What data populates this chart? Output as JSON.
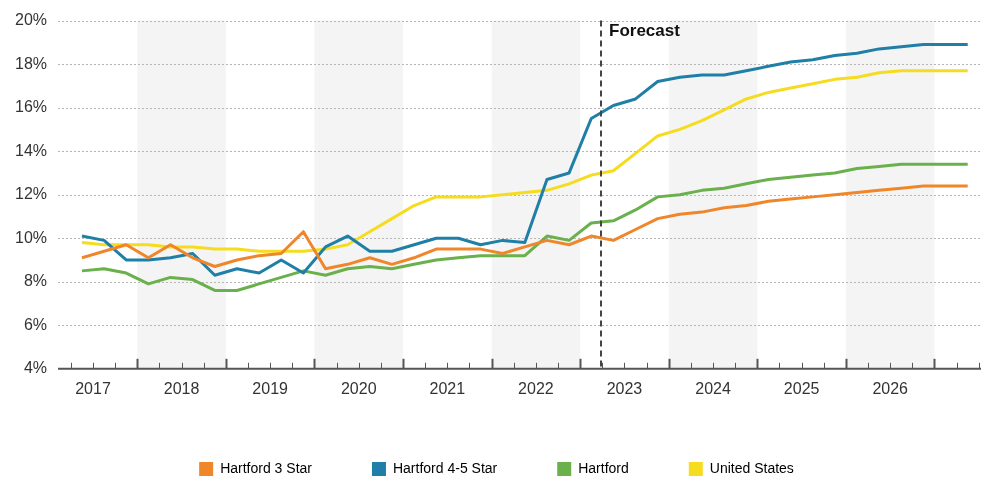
{
  "chart_data": {
    "type": "line",
    "x": [
      2017,
      2017.25,
      2017.5,
      2017.75,
      2018,
      2018.25,
      2018.5,
      2018.75,
      2019,
      2019.25,
      2019.5,
      2019.75,
      2020,
      2020.25,
      2020.5,
      2020.75,
      2021,
      2021.25,
      2021.5,
      2021.75,
      2022,
      2022.25,
      2022.5,
      2022.75,
      2023,
      2023.25,
      2023.5,
      2023.75,
      2024,
      2024.25,
      2024.5,
      2024.75,
      2025,
      2025.25,
      2025.5,
      2025.75,
      2026,
      2026.25,
      2026.5,
      2026.75,
      2027
    ],
    "series": [
      {
        "name": "Hartford 3 Star",
        "color": "#f0862a",
        "values": [
          9.1,
          9.4,
          9.7,
          9.1,
          9.7,
          9.1,
          8.7,
          9.0,
          9.2,
          9.3,
          10.3,
          8.6,
          8.8,
          9.1,
          8.8,
          9.1,
          9.5,
          9.5,
          9.5,
          9.3,
          9.6,
          9.9,
          9.7,
          10.1,
          9.9,
          10.4,
          10.9,
          11.1,
          11.2,
          11.4,
          11.5,
          11.7,
          11.8,
          11.9,
          12.0,
          12.1,
          12.2,
          12.3,
          12.4,
          12.4,
          12.4
        ]
      },
      {
        "name": "Hartford 4-5 Star",
        "color": "#1f7fa6",
        "values": [
          10.1,
          9.9,
          9.0,
          9.0,
          9.1,
          9.3,
          8.3,
          8.6,
          8.4,
          9.0,
          8.4,
          9.6,
          10.1,
          9.4,
          9.4,
          9.7,
          10.0,
          10.0,
          9.7,
          9.9,
          9.8,
          12.7,
          13.0,
          15.5,
          16.1,
          16.4,
          17.2,
          17.4,
          17.5,
          17.5,
          17.7,
          17.9,
          18.1,
          18.2,
          18.4,
          18.5,
          18.7,
          18.8,
          18.9,
          18.9,
          18.9
        ]
      },
      {
        "name": "Hartford",
        "color": "#6ab04c",
        "values": [
          8.5,
          8.6,
          8.4,
          7.9,
          8.2,
          8.1,
          7.6,
          7.6,
          7.9,
          8.2,
          8.5,
          8.3,
          8.6,
          8.7,
          8.6,
          8.8,
          9.0,
          9.1,
          9.2,
          9.2,
          9.2,
          10.1,
          9.9,
          10.7,
          10.8,
          11.3,
          11.9,
          12.0,
          12.2,
          12.3,
          12.5,
          12.7,
          12.8,
          12.9,
          13.0,
          13.2,
          13.3,
          13.4,
          13.4,
          13.4,
          13.4
        ]
      },
      {
        "name": "United States",
        "color": "#f5dc1e",
        "values": [
          9.8,
          9.7,
          9.7,
          9.7,
          9.6,
          9.6,
          9.5,
          9.5,
          9.4,
          9.4,
          9.4,
          9.5,
          9.7,
          10.3,
          10.9,
          11.5,
          11.9,
          11.9,
          11.9,
          12.0,
          12.1,
          12.2,
          12.5,
          12.9,
          13.1,
          13.9,
          14.7,
          15.0,
          15.4,
          15.9,
          16.4,
          16.7,
          16.9,
          17.1,
          17.3,
          17.4,
          17.6,
          17.7,
          17.7,
          17.7,
          17.7
        ]
      }
    ],
    "xlim": [
      2016.73,
      2027.15
    ],
    "xticks": [
      {
        "value": 2017.125,
        "label": "2017"
      },
      {
        "value": 2018.125,
        "label": "2018"
      },
      {
        "value": 2019.125,
        "label": "2019"
      },
      {
        "value": 2020.125,
        "label": "2020"
      },
      {
        "value": 2021.125,
        "label": "2021"
      },
      {
        "value": 2022.125,
        "label": "2022"
      },
      {
        "value": 2023.125,
        "label": "2023"
      },
      {
        "value": 2024.125,
        "label": "2024"
      },
      {
        "value": 2025.125,
        "label": "2025"
      },
      {
        "value": 2026.125,
        "label": "2026"
      }
    ],
    "ylim": [
      4,
      20
    ],
    "yticks": [
      {
        "value": 4,
        "label": "4%"
      },
      {
        "value": 6,
        "label": "6%"
      },
      {
        "value": 8,
        "label": "8%"
      },
      {
        "value": 10,
        "label": "10%"
      },
      {
        "value": 12,
        "label": "12%"
      },
      {
        "value": 14,
        "label": "14%"
      },
      {
        "value": 16,
        "label": "16%"
      },
      {
        "value": 18,
        "label": "18%"
      },
      {
        "value": 20,
        "label": "20%"
      }
    ],
    "bands": [
      {
        "axis": "x",
        "from": 2017.625,
        "to": 2018.625,
        "color": "#f4f4f4"
      },
      {
        "axis": "x",
        "from": 2019.625,
        "to": 2020.625,
        "color": "#f4f4f4"
      },
      {
        "axis": "x",
        "from": 2021.625,
        "to": 2022.625,
        "color": "#f4f4f4"
      },
      {
        "axis": "x",
        "from": 2023.625,
        "to": 2024.625,
        "color": "#f4f4f4"
      },
      {
        "axis": "x",
        "from": 2025.625,
        "to": 2026.625,
        "color": "#f4f4f4"
      }
    ],
    "ref_lines": [
      {
        "axis": "x",
        "value": 2022.86,
        "label": "Forecast",
        "color": "#444444",
        "line_style": "dashed"
      }
    ],
    "grid": "y",
    "legend": "bottom",
    "marker": "none",
    "line_style": "solid"
  }
}
